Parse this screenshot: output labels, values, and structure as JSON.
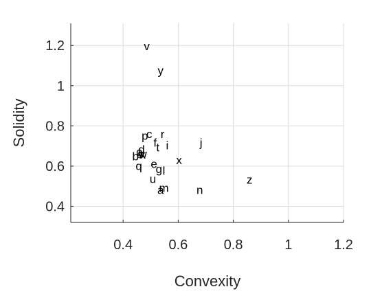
{
  "chart_data": {
    "type": "scatter",
    "title": "",
    "xlabel": "Convexity",
    "ylabel": "Solidity",
    "xlim": [
      0.21,
      1.2
    ],
    "ylim": [
      0.32,
      1.31
    ],
    "grid": true,
    "x_ticks": [
      0.4,
      0.6,
      0.8,
      1,
      1.2
    ],
    "x_tick_labels": [
      "0.4",
      "0.6",
      "0.8",
      "1",
      "1.2"
    ],
    "y_ticks": [
      0.4,
      0.6,
      0.8,
      1,
      1.2
    ],
    "y_tick_labels": [
      "0.4",
      "0.6",
      "0.8",
      "1",
      "1.2"
    ],
    "points": [
      {
        "label": "v",
        "x": 0.486,
        "y": 1.198
      },
      {
        "label": "y",
        "x": 0.536,
        "y": 1.077
      },
      {
        "label": "p",
        "x": 0.479,
        "y": 0.752
      },
      {
        "label": "c",
        "x": 0.495,
        "y": 0.76
      },
      {
        "label": "r",
        "x": 0.543,
        "y": 0.76
      },
      {
        "label": "f",
        "x": 0.516,
        "y": 0.718
      },
      {
        "label": "j",
        "x": 0.683,
        "y": 0.718
      },
      {
        "label": "t",
        "x": 0.526,
        "y": 0.693
      },
      {
        "label": "i",
        "x": 0.56,
        "y": 0.704
      },
      {
        "label": "d",
        "x": 0.467,
        "y": 0.684
      },
      {
        "label": "o",
        "x": 0.459,
        "y": 0.672
      },
      {
        "label": "w",
        "x": 0.471,
        "y": 0.662
      },
      {
        "label": "s",
        "x": 0.463,
        "y": 0.66
      },
      {
        "label": "k",
        "x": 0.471,
        "y": 0.658
      },
      {
        "label": "b",
        "x": 0.445,
        "y": 0.65
      },
      {
        "label": "x",
        "x": 0.603,
        "y": 0.63
      },
      {
        "label": "q",
        "x": 0.457,
        "y": 0.602
      },
      {
        "label": "e",
        "x": 0.512,
        "y": 0.612
      },
      {
        "label": "g",
        "x": 0.53,
        "y": 0.587
      },
      {
        "label": "l",
        "x": 0.548,
        "y": 0.578
      },
      {
        "label": "u",
        "x": 0.508,
        "y": 0.536
      },
      {
        "label": "z",
        "x": 0.859,
        "y": 0.533
      },
      {
        "label": "m",
        "x": 0.548,
        "y": 0.493
      },
      {
        "label": "a",
        "x": 0.536,
        "y": 0.482
      },
      {
        "label": "n",
        "x": 0.678,
        "y": 0.483
      }
    ]
  }
}
